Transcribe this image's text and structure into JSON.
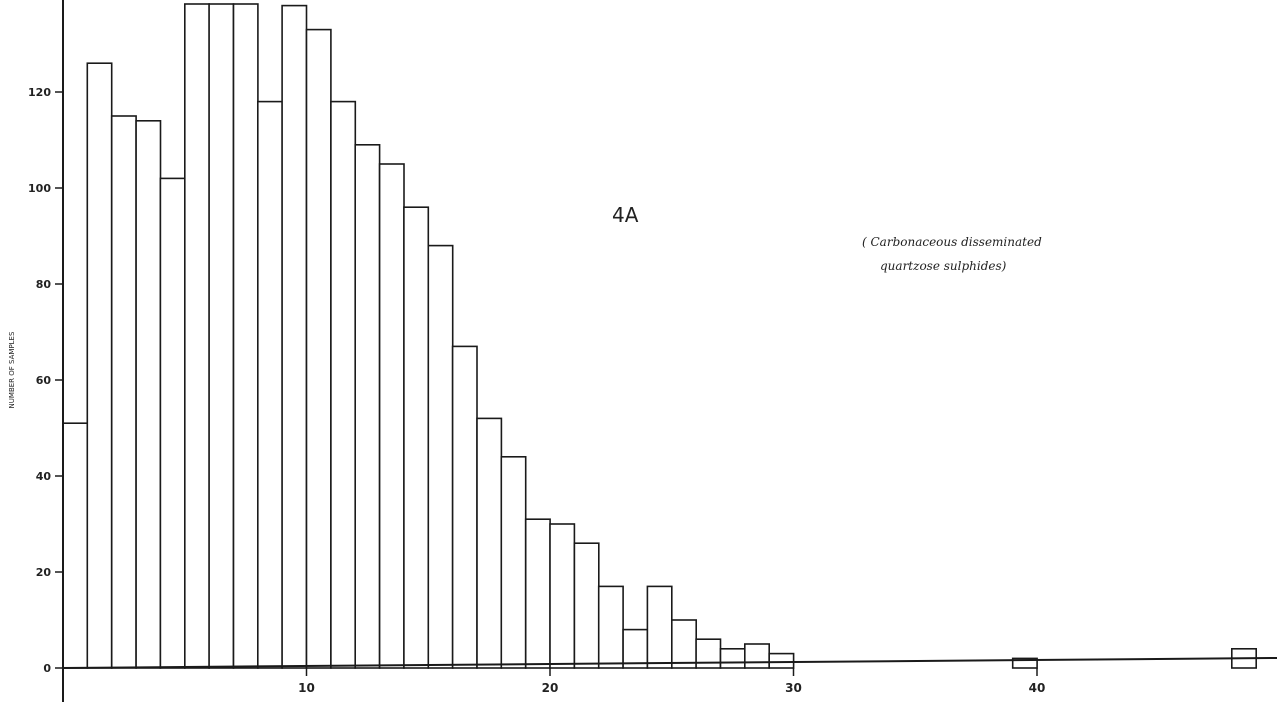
{
  "chart_data": {
    "type": "bar",
    "title": "4A",
    "annotation_line1": "( Carbonaceous disseminated",
    "annotation_line2": "quartzose sulphides)",
    "ylabel": "NUMBER OF SAMPLES",
    "ylim": [
      0,
      140
    ],
    "xlim": [
      0,
      50
    ],
    "y_ticks": [
      {
        "value": 0,
        "label": "0"
      },
      {
        "value": 20,
        "label": "20"
      },
      {
        "value": 40,
        "label": "40"
      },
      {
        "value": 60,
        "label": "60"
      },
      {
        "value": 80,
        "label": "80"
      },
      {
        "value": 100,
        "label": "100"
      },
      {
        "value": 120,
        "label": "120"
      }
    ],
    "x_ticks": [
      {
        "value": 10,
        "label": "10"
      },
      {
        "value": 20,
        "label": "20"
      },
      {
        "value": 30,
        "label": "30"
      },
      {
        "value": 40,
        "label": "40"
      }
    ],
    "bins": [
      1,
      2,
      3,
      4,
      5,
      6,
      7,
      8,
      9,
      10,
      11,
      12,
      13,
      14,
      15,
      16,
      17,
      18,
      19,
      20,
      21,
      22,
      23,
      24,
      25,
      26,
      27,
      28,
      29,
      30
    ],
    "values": [
      51,
      126,
      115,
      114,
      102,
      140,
      140,
      140,
      118,
      138,
      133,
      118,
      109,
      105,
      96,
      88,
      67,
      52,
      44,
      31,
      30,
      26,
      17,
      8,
      17,
      10,
      6,
      4,
      5,
      3
    ],
    "far_bins": [
      40,
      49
    ],
    "far_values": [
      2,
      4
    ]
  }
}
